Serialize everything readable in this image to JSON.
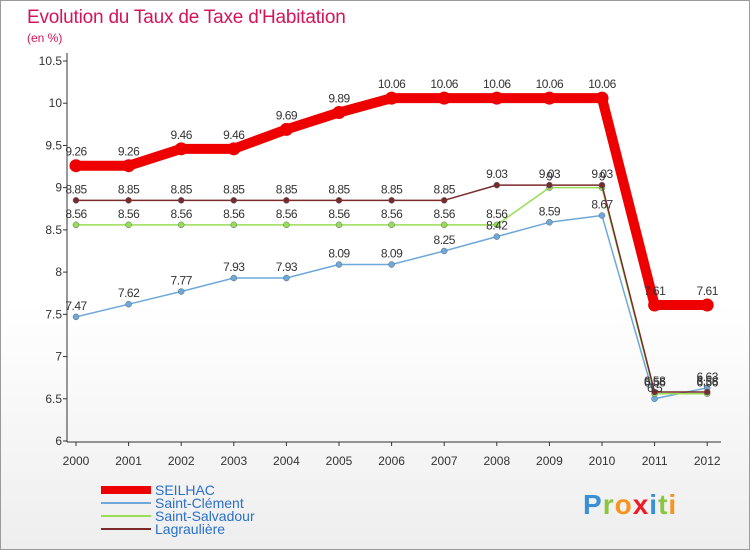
{
  "title": "Evolution du Taux de Taxe d'Habitation",
  "unit_label": "(en %)",
  "logo": {
    "letters": [
      {
        "ch": "P",
        "color": "#3a8fd6"
      },
      {
        "ch": "r",
        "color": "#8cc63f"
      },
      {
        "ch": "o",
        "color": "#f7931e"
      },
      {
        "ch": "x",
        "color": "#ed1c24"
      },
      {
        "ch": "i",
        "color": "#3a8fd6"
      },
      {
        "ch": "t",
        "color": "#8cc63f"
      },
      {
        "ch": "i",
        "color": "#f7931e"
      }
    ]
  },
  "chart_data": {
    "type": "line",
    "title": "Evolution du Taux de Taxe d'Habitation",
    "ylabel": "(en %)",
    "xlabel": "",
    "ylim": [
      6,
      10.5
    ],
    "y_ticks": [
      "6",
      "6.5",
      "7",
      "7.5",
      "8",
      "8.5",
      "9",
      "9.5",
      "10",
      "10.5"
    ],
    "grid": false,
    "legend_position": "bottom-left",
    "categories": [
      "2000",
      "2001",
      "2002",
      "2003",
      "2004",
      "2005",
      "2006",
      "2007",
      "2008",
      "2009",
      "2010",
      "2011",
      "2012"
    ],
    "series": [
      {
        "name": "SEILHAC",
        "color": "#ee0000",
        "width": 10,
        "values": [
          9.26,
          9.26,
          9.46,
          9.46,
          9.69,
          9.89,
          10.06,
          10.06,
          10.06,
          10.06,
          10.06,
          7.61,
          7.61
        ],
        "labels": [
          "9.26",
          "9.26",
          "9.46",
          "9.46",
          "9.69",
          "9.89",
          "10.06",
          "10.06",
          "10.06",
          "10.06",
          "10.06",
          "7.61",
          "7.61"
        ]
      },
      {
        "name": "Saint-Clément",
        "color": "#6fa8d8",
        "width": 1.5,
        "values": [
          7.47,
          7.62,
          7.77,
          7.93,
          7.93,
          8.09,
          8.09,
          8.25,
          8.42,
          8.59,
          8.67,
          6.5,
          6.63
        ],
        "labels": [
          "7.47",
          "7.62",
          "7.77",
          "7.93",
          "7.93",
          "8.09",
          "8.09",
          "8.25",
          "8.42",
          "8.59",
          "8.67",
          "6.5",
          "6.63"
        ]
      },
      {
        "name": "Saint-Salvadour",
        "color": "#99dd55",
        "width": 1.5,
        "values": [
          8.56,
          8.56,
          8.56,
          8.56,
          8.56,
          8.56,
          8.56,
          8.56,
          8.56,
          9.0,
          9.0,
          6.56,
          6.56
        ],
        "labels": [
          "8.56",
          "8.56",
          "8.56",
          "8.56",
          "8.56",
          "8.56",
          "8.56",
          "8.56",
          "8.56",
          "9",
          "9",
          "6.56",
          "6.56"
        ]
      },
      {
        "name": "Lagraulière",
        "color": "#7a2a2a",
        "width": 1.5,
        "values": [
          8.85,
          8.85,
          8.85,
          8.85,
          8.85,
          8.85,
          8.85,
          8.85,
          9.03,
          9.03,
          9.03,
          6.58,
          6.58
        ],
        "labels": [
          "8.85",
          "8.85",
          "8.85",
          "8.85",
          "8.85",
          "8.85",
          "8.85",
          "8.85",
          "9.03",
          "9.03",
          "9.03",
          "6.58",
          "6.58"
        ]
      }
    ]
  }
}
